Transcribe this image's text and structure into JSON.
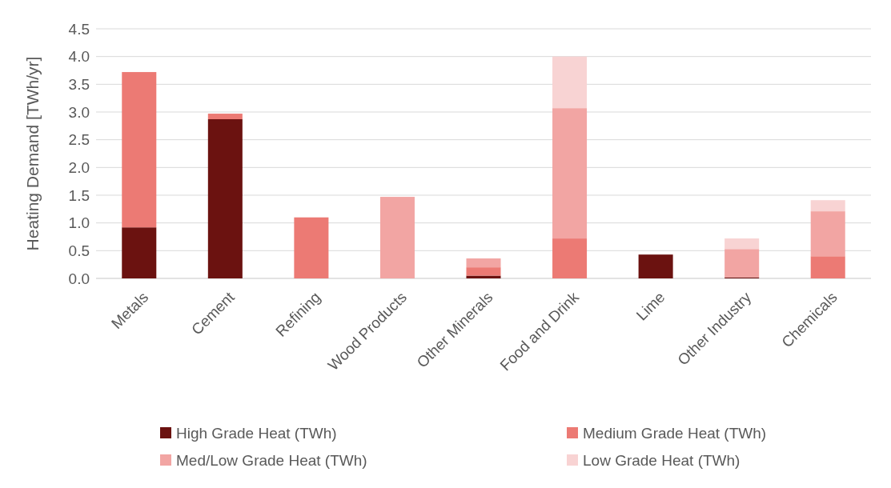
{
  "chart_data": {
    "type": "bar",
    "stacked": true,
    "ylabel": "Heating Demand [TWh/yr]",
    "categories": [
      "Metals",
      "Cement",
      "Refining",
      "Wood Products",
      "Other Minerals",
      "Food and Drink",
      "Lime",
      "Other Industry",
      "Chemicals"
    ],
    "series": [
      {
        "name": "High Grade Heat (TWh)",
        "color": "#6b1210",
        "values": [
          0.92,
          2.87,
          0,
          0,
          0.05,
          0,
          0.43,
          0.02,
          0
        ]
      },
      {
        "name": "Medium Grade Heat (TWh)",
        "color": "#ec7a74",
        "values": [
          2.8,
          0.1,
          1.1,
          0,
          0.15,
          0.72,
          0,
          0,
          0.4
        ]
      },
      {
        "name": "Med/Low Grade Heat (TWh)",
        "color": "#f2a5a3",
        "values": [
          0,
          0,
          0,
          1.47,
          0.16,
          2.35,
          0,
          0.51,
          0.81
        ]
      },
      {
        "name": "Low Grade Heat (TWh)",
        "color": "#f8d3d3",
        "values": [
          0,
          0,
          0,
          0,
          0,
          0.93,
          0,
          0.19,
          0.2
        ]
      }
    ],
    "ylim": [
      0,
      4.5
    ],
    "yticks": [
      {
        "value": 0,
        "label": "0.0"
      },
      {
        "value": 0.5,
        "label": "0.5"
      },
      {
        "value": 1,
        "label": "1.0"
      },
      {
        "value": 1.5,
        "label": "1.5"
      },
      {
        "value": 2,
        "label": "2.0"
      },
      {
        "value": 2.5,
        "label": "2.5"
      },
      {
        "value": 3,
        "label": "3.0"
      },
      {
        "value": 3.5,
        "label": "3.5"
      },
      {
        "value": 4,
        "label": "4.0"
      },
      {
        "value": 4.5,
        "label": "4.5"
      }
    ],
    "grid": "y",
    "legend": "bottom"
  }
}
